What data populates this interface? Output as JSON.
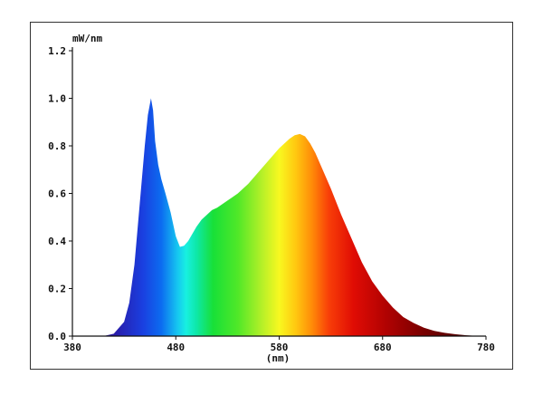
{
  "chart_data": {
    "type": "area",
    "title": "",
    "xlabel": "(nm)",
    "ylabel": "mW/nm",
    "xlim": [
      380,
      780
    ],
    "ylim": [
      0,
      1.2
    ],
    "x_ticks": [
      "380",
      "480",
      "580",
      "680",
      "780"
    ],
    "y_ticks": [
      "0.0",
      "0.2",
      "0.4",
      "0.6",
      "0.8",
      "1.0",
      "1.2"
    ],
    "grid": false,
    "legend": "none",
    "fill": "visible-spectrum gradient",
    "series": [
      {
        "x": [
          380,
          410,
          420,
          430,
          435,
          440,
          445,
          450,
          453,
          456,
          458,
          460,
          463,
          466,
          470,
          475,
          480,
          484,
          488,
          492,
          496,
          500,
          505,
          510,
          515,
          520,
          530,
          540,
          550,
          560,
          570,
          580,
          590,
          595,
          600,
          605,
          610,
          615,
          620,
          630,
          640,
          650,
          660,
          670,
          680,
          690,
          700,
          710,
          720,
          730,
          740,
          750,
          760,
          770,
          780
        ],
        "values": [
          0.0,
          0.0,
          0.01,
          0.06,
          0.14,
          0.3,
          0.55,
          0.8,
          0.93,
          1.0,
          0.95,
          0.82,
          0.72,
          0.66,
          0.6,
          0.52,
          0.42,
          0.375,
          0.38,
          0.4,
          0.43,
          0.46,
          0.49,
          0.51,
          0.53,
          0.54,
          0.57,
          0.6,
          0.64,
          0.69,
          0.74,
          0.79,
          0.83,
          0.845,
          0.85,
          0.84,
          0.81,
          0.77,
          0.72,
          0.62,
          0.51,
          0.41,
          0.31,
          0.23,
          0.17,
          0.12,
          0.08,
          0.055,
          0.035,
          0.022,
          0.014,
          0.008,
          0.004,
          0.001,
          0.0
        ]
      }
    ]
  }
}
